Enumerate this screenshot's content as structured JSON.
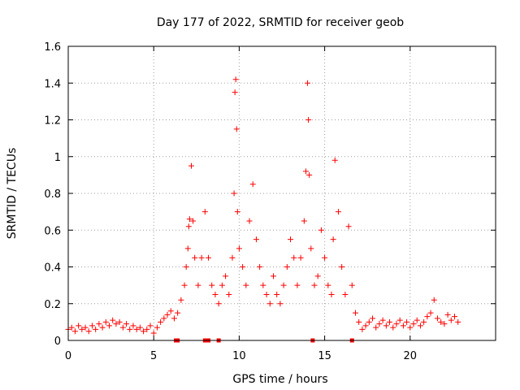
{
  "chart_data": {
    "type": "scatter",
    "title": "Day 177 of 2022, SRMTID for receiver geob",
    "xlabel": "GPS time / hours",
    "ylabel": "SRMTID / TECUs",
    "xlim": [
      0,
      25
    ],
    "ylim": [
      0,
      1.6
    ],
    "x_ticks": [
      0,
      5,
      10,
      15,
      20
    ],
    "x_tick_labels": [
      "0",
      "5",
      "10",
      "15",
      "20"
    ],
    "y_ticks": [
      0,
      0.2,
      0.4,
      0.6,
      0.8,
      1.0,
      1.2,
      1.4,
      1.6
    ],
    "y_tick_labels": [
      "0",
      "0.2",
      "0.4",
      "0.6",
      "0.8",
      "1",
      "1.2",
      "1.4",
      "1.6"
    ],
    "grid": true,
    "marker": "+",
    "marker_color": "#ff0000",
    "baseline_markers_x": [
      6.3,
      6.4,
      8.0,
      8.2,
      8.8,
      14.3,
      16.6
    ],
    "series": [
      {
        "name": "SRMTID",
        "x": [
          0.0,
          0.2,
          0.4,
          0.6,
          0.8,
          1.0,
          1.2,
          1.4,
          1.6,
          1.8,
          2.0,
          2.2,
          2.4,
          2.6,
          2.8,
          3.0,
          3.2,
          3.4,
          3.6,
          3.8,
          4.0,
          4.2,
          4.4,
          4.6,
          4.8,
          5.0,
          5.2,
          5.4,
          5.6,
          5.8,
          6.0,
          6.2,
          6.4,
          6.6,
          6.8,
          6.9,
          7.0,
          7.05,
          7.1,
          7.2,
          7.3,
          7.4,
          7.6,
          7.8,
          8.0,
          8.2,
          8.4,
          8.6,
          8.8,
          9.0,
          9.2,
          9.4,
          9.6,
          9.7,
          9.75,
          9.8,
          9.85,
          9.9,
          10.0,
          10.2,
          10.4,
          10.6,
          10.8,
          11.0,
          11.2,
          11.4,
          11.6,
          11.8,
          12.0,
          12.2,
          12.4,
          12.6,
          12.8,
          13.0,
          13.2,
          13.4,
          13.6,
          13.8,
          13.9,
          14.0,
          14.05,
          14.1,
          14.2,
          14.4,
          14.6,
          14.8,
          15.0,
          15.2,
          15.4,
          15.5,
          15.6,
          15.8,
          16.0,
          16.2,
          16.4,
          16.6,
          16.8,
          17.0,
          17.2,
          17.4,
          17.6,
          17.8,
          18.0,
          18.2,
          18.4,
          18.6,
          18.8,
          19.0,
          19.2,
          19.4,
          19.6,
          19.8,
          20.0,
          20.2,
          20.4,
          20.6,
          20.8,
          21.0,
          21.2,
          21.4,
          21.6,
          21.8,
          22.0,
          22.2,
          22.4,
          22.6,
          22.8
        ],
        "y": [
          0.06,
          0.07,
          0.05,
          0.08,
          0.06,
          0.07,
          0.05,
          0.08,
          0.06,
          0.09,
          0.07,
          0.1,
          0.08,
          0.11,
          0.09,
          0.1,
          0.07,
          0.09,
          0.06,
          0.08,
          0.06,
          0.07,
          0.05,
          0.06,
          0.08,
          0.04,
          0.07,
          0.1,
          0.12,
          0.14,
          0.16,
          0.12,
          0.15,
          0.22,
          0.3,
          0.4,
          0.5,
          0.62,
          0.66,
          0.95,
          0.65,
          0.45,
          0.3,
          0.45,
          0.7,
          0.45,
          0.3,
          0.25,
          0.2,
          0.3,
          0.35,
          0.25,
          0.45,
          0.8,
          1.35,
          1.42,
          1.15,
          0.7,
          0.5,
          0.4,
          0.3,
          0.65,
          0.85,
          0.55,
          0.4,
          0.3,
          0.25,
          0.2,
          0.35,
          0.25,
          0.2,
          0.3,
          0.4,
          0.55,
          0.45,
          0.3,
          0.45,
          0.65,
          0.92,
          1.4,
          1.2,
          0.9,
          0.5,
          0.3,
          0.35,
          0.6,
          0.45,
          0.3,
          0.25,
          0.55,
          0.98,
          0.7,
          0.4,
          0.25,
          0.62,
          0.3,
          0.15,
          0.1,
          0.06,
          0.08,
          0.1,
          0.12,
          0.07,
          0.09,
          0.11,
          0.08,
          0.1,
          0.07,
          0.09,
          0.11,
          0.08,
          0.1,
          0.07,
          0.09,
          0.11,
          0.08,
          0.1,
          0.13,
          0.15,
          0.22,
          0.12,
          0.1,
          0.09,
          0.14,
          0.11,
          0.13,
          0.1
        ]
      }
    ]
  }
}
